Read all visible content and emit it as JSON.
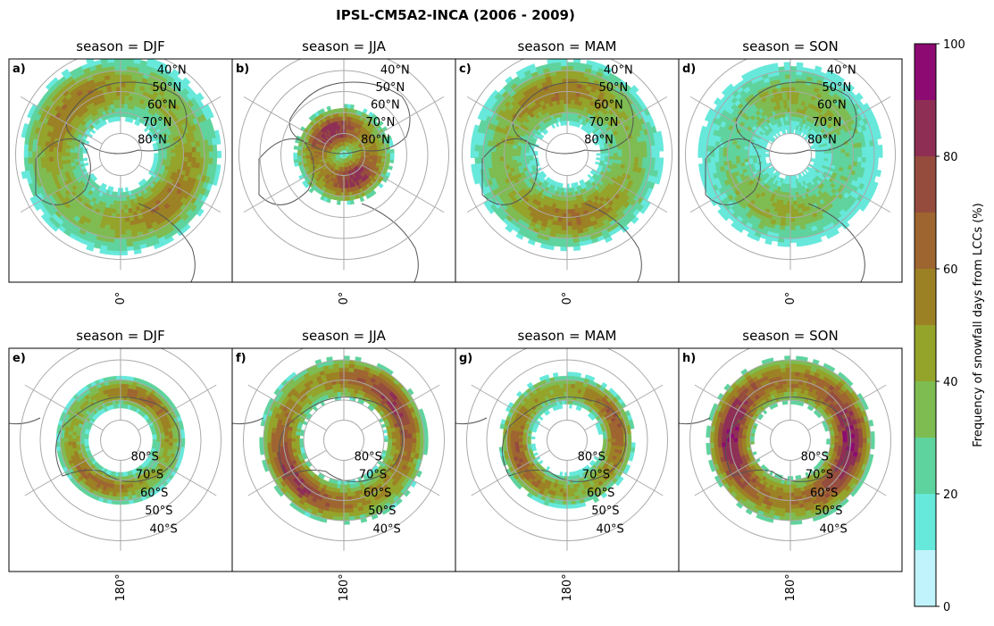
{
  "chart_data": {
    "type": "heatmap",
    "title": "IPSL-CM5A2-INCA (2006 - 2009)",
    "colorbar": {
      "label": "Frequency of snowfall days from LCCs (%)",
      "range": [
        0,
        100
      ],
      "ticks": [
        "0",
        "20",
        "40",
        "60",
        "80",
        "100"
      ],
      "tick_values": [
        0,
        20,
        40,
        60,
        80,
        100
      ],
      "bins": [
        {
          "from": 0,
          "to": 10,
          "color": "#c0f3fb"
        },
        {
          "from": 10,
          "to": 20,
          "color": "#66e8db"
        },
        {
          "from": 20,
          "to": 30,
          "color": "#5fd39d"
        },
        {
          "from": 30,
          "to": 40,
          "color": "#7ebc52"
        },
        {
          "from": 40,
          "to": 50,
          "color": "#94a32a"
        },
        {
          "from": 50,
          "to": 60,
          "color": "#9c8124"
        },
        {
          "from": 60,
          "to": 70,
          "color": "#9e6530"
        },
        {
          "from": 70,
          "to": 80,
          "color": "#954c3d"
        },
        {
          "from": 80,
          "to": 90,
          "color": "#8e2e55"
        },
        {
          "from": 90,
          "to": 100,
          "color": "#8c0a72"
        }
      ]
    },
    "panels": [
      {
        "id": "a)",
        "title": "season = DJF",
        "hemisphere": "north",
        "lat_labels": [
          "40°N",
          "50°N",
          "60°N",
          "70°N",
          "80°N"
        ],
        "lon_label": "0°",
        "ring": {
          "lat_from": 42,
          "lat_to": 74,
          "peak": 55,
          "core": 40
        }
      },
      {
        "id": "b)",
        "title": "season = JJA",
        "hemisphere": "north",
        "lat_labels": [
          "40°N",
          "50°N",
          "60°N",
          "70°N",
          "80°N"
        ],
        "lon_label": "0°",
        "ring": {
          "lat_from": 66,
          "lat_to": 90,
          "peak": 80,
          "core": 50
        }
      },
      {
        "id": "c)",
        "title": "season = MAM",
        "hemisphere": "north",
        "lat_labels": [
          "40°N",
          "50°N",
          "60°N",
          "70°N",
          "80°N"
        ],
        "lon_label": "0°",
        "ring": {
          "lat_from": 44,
          "lat_to": 76,
          "peak": 55,
          "core": 35
        }
      },
      {
        "id": "d)",
        "title": "season = SON",
        "hemisphere": "north",
        "lat_labels": [
          "40°N",
          "50°N",
          "60°N",
          "70°N",
          "80°N"
        ],
        "lon_label": "0°",
        "ring": {
          "lat_from": 46,
          "lat_to": 80,
          "peak": 40,
          "core": 25
        }
      },
      {
        "id": "e)",
        "title": "season = DJF",
        "hemisphere": "south",
        "lat_labels": [
          "80°S",
          "70°S",
          "60°S",
          "50°S",
          "40°S"
        ],
        "lon_label": "180°",
        "ring": {
          "lat_from": 58,
          "lat_to": 74,
          "peak": 60,
          "core": 40
        }
      },
      {
        "id": "f)",
        "title": "season = JJA",
        "hemisphere": "south",
        "lat_labels": [
          "80°S",
          "70°S",
          "60°S",
          "50°S",
          "40°S"
        ],
        "lon_label": "180°",
        "ring": {
          "lat_from": 48,
          "lat_to": 70,
          "peak": 75,
          "core": 55
        }
      },
      {
        "id": "g)",
        "title": "season = MAM",
        "hemisphere": "south",
        "lat_labels": [
          "80°S",
          "70°S",
          "60°S",
          "50°S",
          "40°S"
        ],
        "lon_label": "180°",
        "ring": {
          "lat_from": 56,
          "lat_to": 73,
          "peak": 65,
          "core": 45
        }
      },
      {
        "id": "h)",
        "title": "season = SON",
        "hemisphere": "south",
        "lat_labels": [
          "80°S",
          "70°S",
          "60°S",
          "50°S",
          "40°S"
        ],
        "lon_label": "180°",
        "ring": {
          "lat_from": 48,
          "lat_to": 72,
          "peak": 85,
          "core": 65
        }
      }
    ]
  }
}
